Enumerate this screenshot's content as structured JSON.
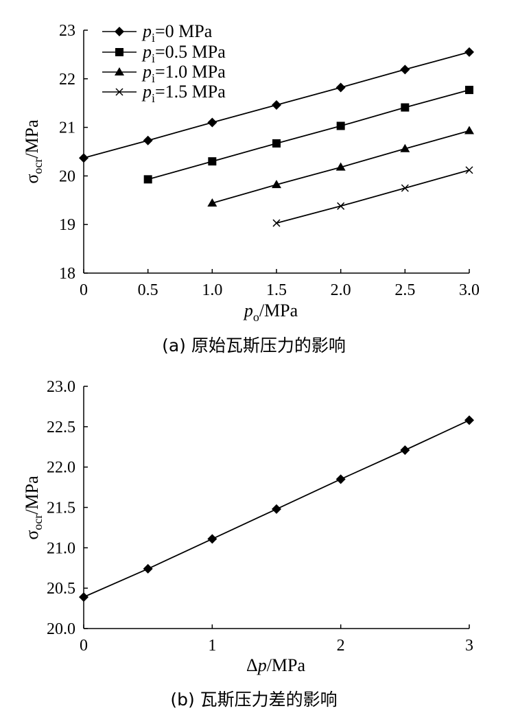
{
  "chart_data": [
    {
      "type": "line",
      "caption": "(a)  原始瓦斯压力的影响",
      "ylabel_main": "σ",
      "ylabel_sub": "ocr",
      "ylabel_tail": "/MPa",
      "xlabel_main": "p",
      "xlabel_sub": "o",
      "xlabel_tail": "/MPa",
      "xlim": [
        0,
        3.0
      ],
      "ylim": [
        18,
        23
      ],
      "xticks": [
        "0",
        "0.5",
        "1.0",
        "1.5",
        "2.0",
        "2.5",
        "3.0"
      ],
      "yticks": [
        "18",
        "19",
        "20",
        "21",
        "22",
        "23"
      ],
      "grid": false,
      "legend_position": "top-left",
      "series": [
        {
          "name": "p_i=0 MPa",
          "legend_main": "p",
          "legend_sub": "i",
          "legend_tail": "=0 MPa",
          "marker": "diamond",
          "x": [
            0,
            0.5,
            1.0,
            1.5,
            2.0,
            2.5,
            3.0
          ],
          "y": [
            20.37,
            20.73,
            21.1,
            21.46,
            21.82,
            22.19,
            22.55
          ]
        },
        {
          "name": "p_i=0.5 MPa",
          "legend_main": "p",
          "legend_sub": "i",
          "legend_tail": "=0.5 MPa",
          "marker": "square",
          "x": [
            0.5,
            1.0,
            1.5,
            2.0,
            2.5,
            3.0
          ],
          "y": [
            19.93,
            20.3,
            20.67,
            21.03,
            21.41,
            21.77
          ]
        },
        {
          "name": "p_i=1.0 MPa",
          "legend_main": "p",
          "legend_sub": "i",
          "legend_tail": "=1.0 MPa",
          "marker": "triangle",
          "x": [
            1.0,
            1.5,
            2.0,
            2.5,
            3.0
          ],
          "y": [
            19.44,
            19.82,
            20.18,
            20.56,
            20.93
          ]
        },
        {
          "name": "p_i=1.5 MPa",
          "legend_main": "p",
          "legend_sub": "i",
          "legend_tail": "=1.5 MPa",
          "marker": "x",
          "x": [
            1.5,
            2.0,
            2.5,
            3.0
          ],
          "y": [
            19.03,
            19.38,
            19.75,
            20.12
          ]
        }
      ]
    },
    {
      "type": "line",
      "caption": "(b)  瓦斯压力差的影响",
      "ylabel_main": "σ",
      "ylabel_sub": "ocr",
      "ylabel_tail": "/MPa",
      "xlabel_main": "Δ",
      "xlabel_ital": "p",
      "xlabel_tail": "/MPa",
      "xlim": [
        0,
        3
      ],
      "ylim": [
        20.0,
        23.0
      ],
      "xticks": [
        "0",
        "1",
        "2",
        "3"
      ],
      "yticks": [
        "20.0",
        "20.5",
        "21.0",
        "21.5",
        "22.0",
        "22.5",
        "23.0"
      ],
      "grid": false,
      "series": [
        {
          "marker": "diamond",
          "x": [
            0,
            0.5,
            1.0,
            1.5,
            2.0,
            2.5,
            3.0
          ],
          "y": [
            20.39,
            20.74,
            21.11,
            21.48,
            21.85,
            22.21,
            22.58
          ]
        }
      ]
    }
  ]
}
